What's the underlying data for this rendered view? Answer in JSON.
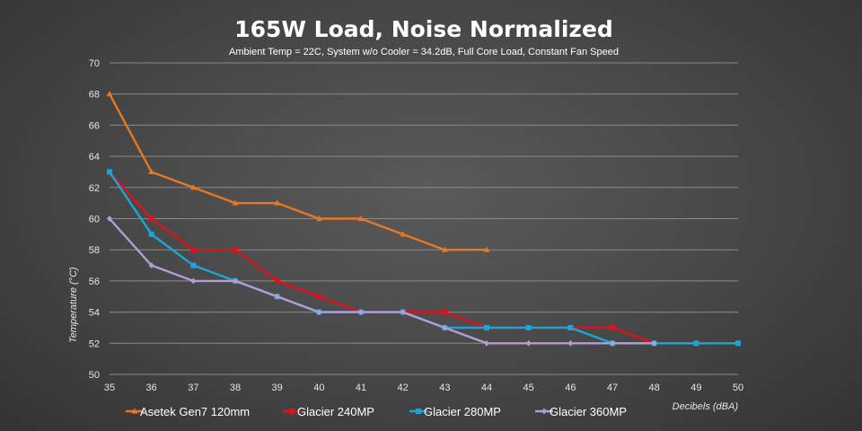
{
  "chart_data": {
    "type": "line",
    "title": "165W Load, Noise Normalized",
    "subtitle": "Ambient Temp = 22C, System w/o Cooler = 34.2dB, Full Core Load, Constant Fan Speed",
    "xlabel": "Decibels (dBA)",
    "ylabel": "Temperature (°C)",
    "xlim": [
      35,
      50
    ],
    "ylim": [
      50,
      70
    ],
    "x_ticks": [
      35,
      36,
      37,
      38,
      39,
      40,
      41,
      42,
      43,
      44,
      45,
      46,
      47,
      48,
      49,
      50
    ],
    "y_ticks": [
      50,
      52,
      54,
      56,
      58,
      60,
      62,
      64,
      66,
      68,
      70
    ],
    "grid": true,
    "legend_position": "bottom",
    "series": [
      {
        "name": "Asetek Gen7 120mm",
        "color": "#e87722",
        "marker": "triangle",
        "x": [
          35,
          36,
          37,
          38,
          39,
          40,
          41,
          42,
          43,
          44
        ],
        "y": [
          68,
          63,
          62,
          61,
          61,
          60,
          60,
          59,
          58,
          58
        ]
      },
      {
        "name": "Glacier 240MP",
        "color": "#e0101c",
        "marker": "square",
        "x": [
          35,
          36,
          37,
          38,
          39,
          40,
          41,
          42,
          43,
          44,
          45,
          46,
          47,
          48
        ],
        "y": [
          63,
          60,
          58,
          58,
          56,
          55,
          54,
          54,
          54,
          53,
          53,
          53,
          53,
          52
        ]
      },
      {
        "name": "Glacier 280MP",
        "color": "#1aa6d8",
        "marker": "square",
        "x": [
          35,
          36,
          37,
          38,
          39,
          40,
          41,
          42,
          43,
          44,
          45,
          46,
          47,
          48,
          49,
          50
        ],
        "y": [
          63,
          59,
          57,
          56,
          55,
          54,
          54,
          54,
          53,
          53,
          53,
          53,
          52,
          52,
          52,
          52
        ]
      },
      {
        "name": "Glacier 360MP",
        "color": "#b49cd6",
        "marker": "diamond",
        "x": [
          35,
          36,
          37,
          38,
          39,
          40,
          41,
          42,
          43,
          44,
          45,
          46,
          47,
          48
        ],
        "y": [
          60,
          57,
          56,
          56,
          55,
          54,
          54,
          54,
          53,
          52,
          52,
          52,
          52,
          52
        ]
      }
    ]
  }
}
